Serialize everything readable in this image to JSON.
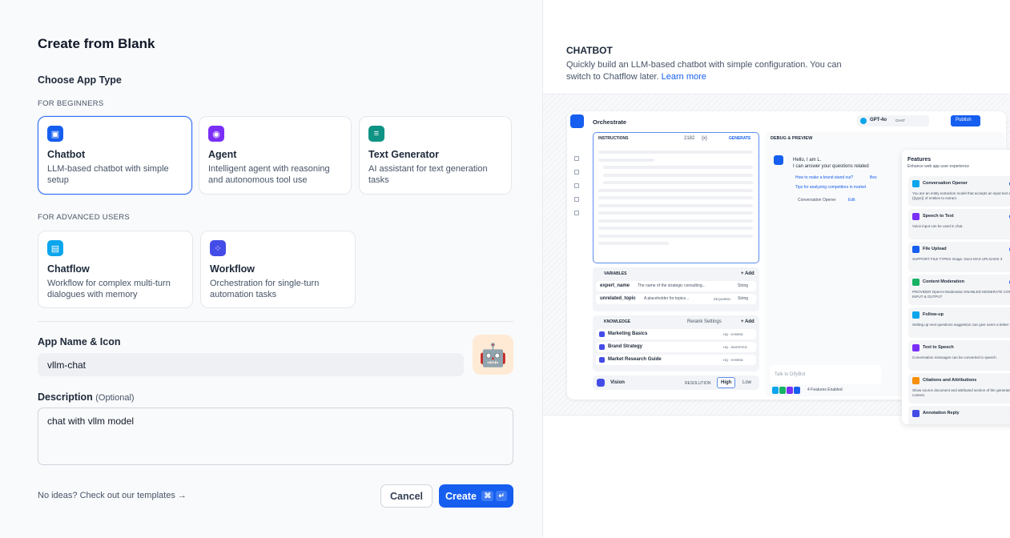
{
  "title": "Create from Blank",
  "choose_label": "Choose App Type",
  "beginners_label": "FOR BEGINNERS",
  "advanced_label": "FOR ADVANCED USERS",
  "app_types": [
    {
      "name": "Chatbot",
      "desc": "LLM-based chatbot with simple setup",
      "icon": "chatbot-icon",
      "color": "#155eef",
      "selected": true
    },
    {
      "name": "Agent",
      "desc": "Intelligent agent with reasoning and autonomous tool use",
      "icon": "agent-icon",
      "color": "#7a2ff7"
    },
    {
      "name": "Text Generator",
      "desc": "AI assistant for text generation tasks",
      "icon": "text-generator-icon",
      "color": "#0e9384"
    },
    {
      "name": "Chatflow",
      "desc": "Workflow for complex multi-turn dialogues with memory",
      "icon": "chatflow-icon",
      "color": "#0ba5ec"
    },
    {
      "name": "Workflow",
      "desc": "Orchestration for single-turn automation tasks",
      "icon": "workflow-icon",
      "color": "#444ce7"
    }
  ],
  "name_label": "App Name & Icon",
  "app_name": "vllm-chat",
  "app_icon": "🤖",
  "app_icon_bg": "#ffead5",
  "desc_label": "Description",
  "desc_optional": "(Optional)",
  "description": "chat with vllm model",
  "templates_link": "No ideas? Check out our templates",
  "cancel": "Cancel",
  "create": "Create",
  "create_kbd": [
    "⌘",
    "↵"
  ],
  "accent": "#155eef",
  "preview": {
    "heading": "CHATBOT",
    "desc": "Quickly build an LLM-based chatbot with simple configuration. You can switch to Chatflow later.",
    "learn_more": "Learn more",
    "mock": {
      "orchestrate": "Orchestrate",
      "model": "GPT-4o",
      "chat_badge": "CHAT",
      "publish": "Publish",
      "instructions": "INSTRUCTIONS",
      "count": "2182",
      "var_sym": "{x}",
      "generate": "GENERATE",
      "variables": "VARIABLES",
      "add": "+ Add",
      "vars": [
        {
          "name": "expert_name",
          "desc": "The name of the strategic consulting...",
          "type": "String",
          "required": ""
        },
        {
          "name": "unrelated_topic",
          "desc": "A placeholder for topics...",
          "type": "String",
          "required": "REQUIRED"
        }
      ],
      "knowledge": "KNOWLEDGE",
      "rerank": "Rerank Settings",
      "kb": [
        {
          "name": "Marketing Basics",
          "tag": "HQ · HYBRID"
        },
        {
          "name": "Brand Strategy",
          "tag": "HQ · INVERTED"
        },
        {
          "name": "Market Research Guide",
          "tag": "HQ · HYBRID"
        }
      ],
      "vision": "Vision",
      "resolution": "RESOLUTION",
      "high": "High",
      "low": "Low",
      "debug": "DEBUG & PREVIEW",
      "hello": "Hello, I am L.",
      "hello2": "I can answer your questions related",
      "sugg1": "How to make a brand stand out?",
      "sugg1b": "Bes",
      "sugg2": "Tips for analyzing competitors in market",
      "opener": "Conversation Opener",
      "edit": "Edit",
      "talk": "Talk to DifyBot",
      "enabled": "4 Features Enabled",
      "features_title": "Features",
      "features_sub": "Enhance web app user experience",
      "features": [
        {
          "name": "Conversation Opener",
          "desc": "You are an entity extraction model that accepts an input text and {{type}} of entities to extract.",
          "on": true,
          "color": "#0ba5ec"
        },
        {
          "name": "Speech to Text",
          "desc": "Voice input can be used in chat.",
          "on": true,
          "color": "#7a2ff7"
        },
        {
          "name": "File Upload",
          "desc": "SUPPORT FILE TYPES  Image, Docs   MAX UPLOADS 3",
          "on": true,
          "color": "#155eef"
        },
        {
          "name": "Content Moderation",
          "desc": "PROVIDER OpenAI Moderation   ENABLED MODERATE CONTENT INPUT & OUTPUT",
          "on": true,
          "color": "#16b364"
        },
        {
          "name": "Follow-up",
          "desc": "Setting up next questions suggestion can give users a better chat.",
          "on": false,
          "color": "#0ba5ec"
        },
        {
          "name": "Text to Speech",
          "desc": "Conversation messages can be converted to speech.",
          "on": false,
          "color": "#7a2ff7"
        },
        {
          "name": "Citations and Attributions",
          "desc": "Show source document and attributed section of the generated content.",
          "on": false,
          "color": "#f79009"
        },
        {
          "name": "Annotation Reply",
          "desc": "",
          "on": false,
          "color": "#444ce7"
        }
      ]
    }
  }
}
